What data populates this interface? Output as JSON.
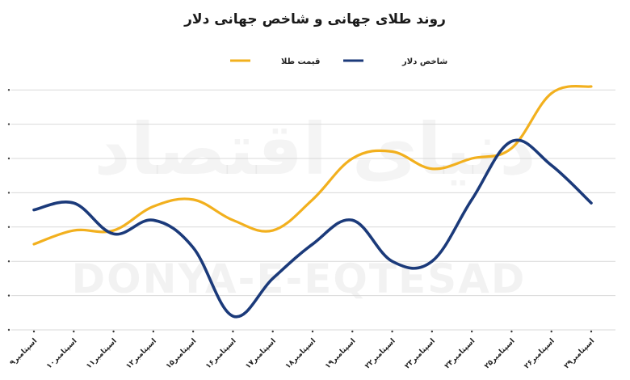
{
  "chart_data": {
    "type": "line",
    "title": "روند طلای جهانی و شاخص جهانی دلار",
    "watermark": {
      "persian": "دنیای اقتصاد",
      "latin": "DONYA-E-EQTESAD"
    },
    "categories": [
      "۹اسپتامبر",
      "۱۰اسپتامبر",
      "۱۱اسپتامبر",
      "۱۲اسپتامبر",
      "۱۵اسپتامبر",
      "۱۶اسپتامبر",
      "۱۷اسپتامبر",
      "۱۸اسپتامبر",
      "۱۹اسپتامبر",
      "۲۲اسپتامبر",
      "۲۳اسپتامبر",
      "۲۴اسپتامبر",
      "۲۵اسپتامبر",
      "۲۶اسپتامبر",
      "۲۹اسپتامبر"
    ],
    "series": [
      {
        "name": "قیمت طلا",
        "color": "#F2B01E",
        "values": [
          2.5,
          2.9,
          2.9,
          3.6,
          3.8,
          3.2,
          2.9,
          3.8,
          5.0,
          5.2,
          4.7,
          5.0,
          5.3,
          6.9,
          7.1
        ]
      },
      {
        "name": "شاخص دلار",
        "color": "#1B3A7A",
        "values": [
          3.5,
          3.7,
          2.8,
          3.2,
          2.4,
          0.4,
          1.5,
          2.5,
          3.2,
          2.0,
          2.0,
          3.8,
          5.5,
          4.8,
          3.7
        ]
      }
    ],
    "ylim": [
      0,
      7.5
    ],
    "grid": true,
    "legend": "top-center"
  }
}
